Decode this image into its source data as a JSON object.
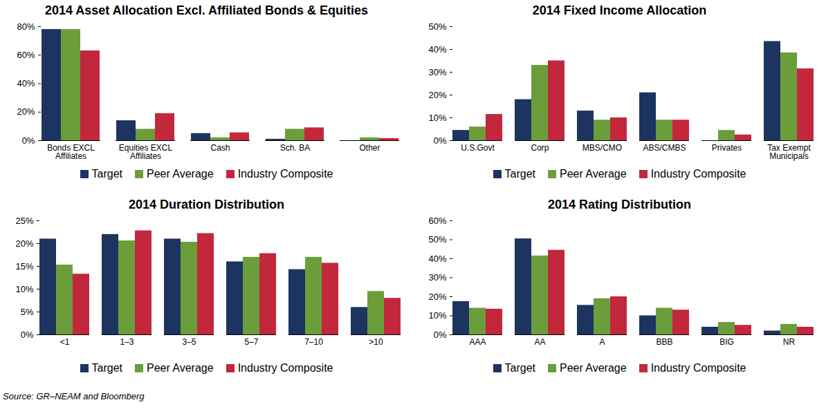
{
  "chart_data": [
    {
      "type": "bar",
      "title": "2014 Asset Allocation Excl. Affiliated Bonds & Equities",
      "categories": [
        "Bonds EXCL Affiliates",
        "Equities EXCL Affiliates",
        "Cash",
        "Sch. BA",
        "Other"
      ],
      "series": [
        {
          "name": "Target",
          "color": "#1d3461",
          "values": [
            78,
            14,
            5,
            1,
            0
          ]
        },
        {
          "name": "Peer Average",
          "color": "#6b9e3a",
          "values": [
            78,
            8,
            2,
            8,
            2
          ]
        },
        {
          "name": "Industry Composite",
          "color": "#c3273c",
          "values": [
            63,
            19,
            5.5,
            9,
            1.5
          ]
        }
      ],
      "ylim": [
        0,
        80
      ],
      "yticks": [
        {
          "value": 0,
          "label": "0%"
        },
        {
          "value": 20,
          "label": "20%"
        },
        {
          "value": 40,
          "label": "40%"
        },
        {
          "value": 60,
          "label": "60%"
        },
        {
          "value": 80,
          "label": "80%"
        }
      ],
      "grid": false,
      "legend": "bottom"
    },
    {
      "type": "bar",
      "title": "2014 Fixed Income Allocation",
      "categories": [
        "U.S.Govt",
        "Corp",
        "MBS/CMO",
        "ABS/CMBS",
        "Privates",
        "Tax Exempt Municipals"
      ],
      "series": [
        {
          "name": "Target",
          "color": "#1d3461",
          "values": [
            4.5,
            18,
            13,
            21,
            0,
            43.5
          ]
        },
        {
          "name": "Peer Average",
          "color": "#6b9e3a",
          "values": [
            6,
            33,
            9,
            9,
            4.5,
            38.5
          ]
        },
        {
          "name": "Industry Composite",
          "color": "#c3273c",
          "values": [
            11.5,
            35,
            10,
            9,
            2.5,
            31.5
          ]
        }
      ],
      "ylim": [
        0,
        50
      ],
      "yticks": [
        {
          "value": 0,
          "label": "0%"
        },
        {
          "value": 10,
          "label": "10%"
        },
        {
          "value": 20,
          "label": "20%"
        },
        {
          "value": 30,
          "label": "30%"
        },
        {
          "value": 40,
          "label": "40%"
        },
        {
          "value": 50,
          "label": "50%"
        }
      ],
      "grid": false,
      "legend": "bottom"
    },
    {
      "type": "bar",
      "title": "2014 Duration Distribution",
      "categories": [
        "<1",
        "1–3",
        "3–5",
        "5–7",
        "7–10",
        ">10"
      ],
      "series": [
        {
          "name": "Target",
          "color": "#1d3461",
          "values": [
            21,
            22,
            21,
            16,
            14.3,
            6
          ]
        },
        {
          "name": "Peer Average",
          "color": "#6b9e3a",
          "values": [
            15.3,
            20.6,
            20.3,
            17,
            17,
            9.5
          ]
        },
        {
          "name": "Industry Composite",
          "color": "#c3273c",
          "values": [
            13.3,
            22.8,
            22.2,
            17.8,
            15.7,
            8
          ]
        }
      ],
      "ylim": [
        0,
        25
      ],
      "yticks": [
        {
          "value": 0,
          "label": "0%"
        },
        {
          "value": 5,
          "label": "5%"
        },
        {
          "value": 10,
          "label": "10%"
        },
        {
          "value": 15,
          "label": "15%"
        },
        {
          "value": 20,
          "label": "20%"
        },
        {
          "value": 25,
          "label": "25%"
        }
      ],
      "grid": false,
      "legend": "bottom"
    },
    {
      "type": "bar",
      "title": "2014 Rating Distribution",
      "categories": [
        "AAA",
        "AA",
        "A",
        "BBB",
        "BIG",
        "NR"
      ],
      "series": [
        {
          "name": "Target",
          "color": "#1d3461",
          "values": [
            17.5,
            50.5,
            15.5,
            10,
            4,
            2
          ]
        },
        {
          "name": "Peer Average",
          "color": "#6b9e3a",
          "values": [
            14,
            41.5,
            19,
            14,
            6.5,
            5.5
          ]
        },
        {
          "name": "Industry Composite",
          "color": "#c3273c",
          "values": [
            13.5,
            44.5,
            20,
            13,
            5,
            4
          ]
        }
      ],
      "ylim": [
        0,
        60
      ],
      "yticks": [
        {
          "value": 0,
          "label": "0%"
        },
        {
          "value": 10,
          "label": "10%"
        },
        {
          "value": 20,
          "label": "20%"
        },
        {
          "value": 30,
          "label": "30%"
        },
        {
          "value": 40,
          "label": "40%"
        },
        {
          "value": 50,
          "label": "50%"
        },
        {
          "value": 60,
          "label": "60%"
        }
      ],
      "grid": false,
      "legend": "bottom"
    }
  ],
  "source": "Source: GR–NEAM and Bloomberg"
}
